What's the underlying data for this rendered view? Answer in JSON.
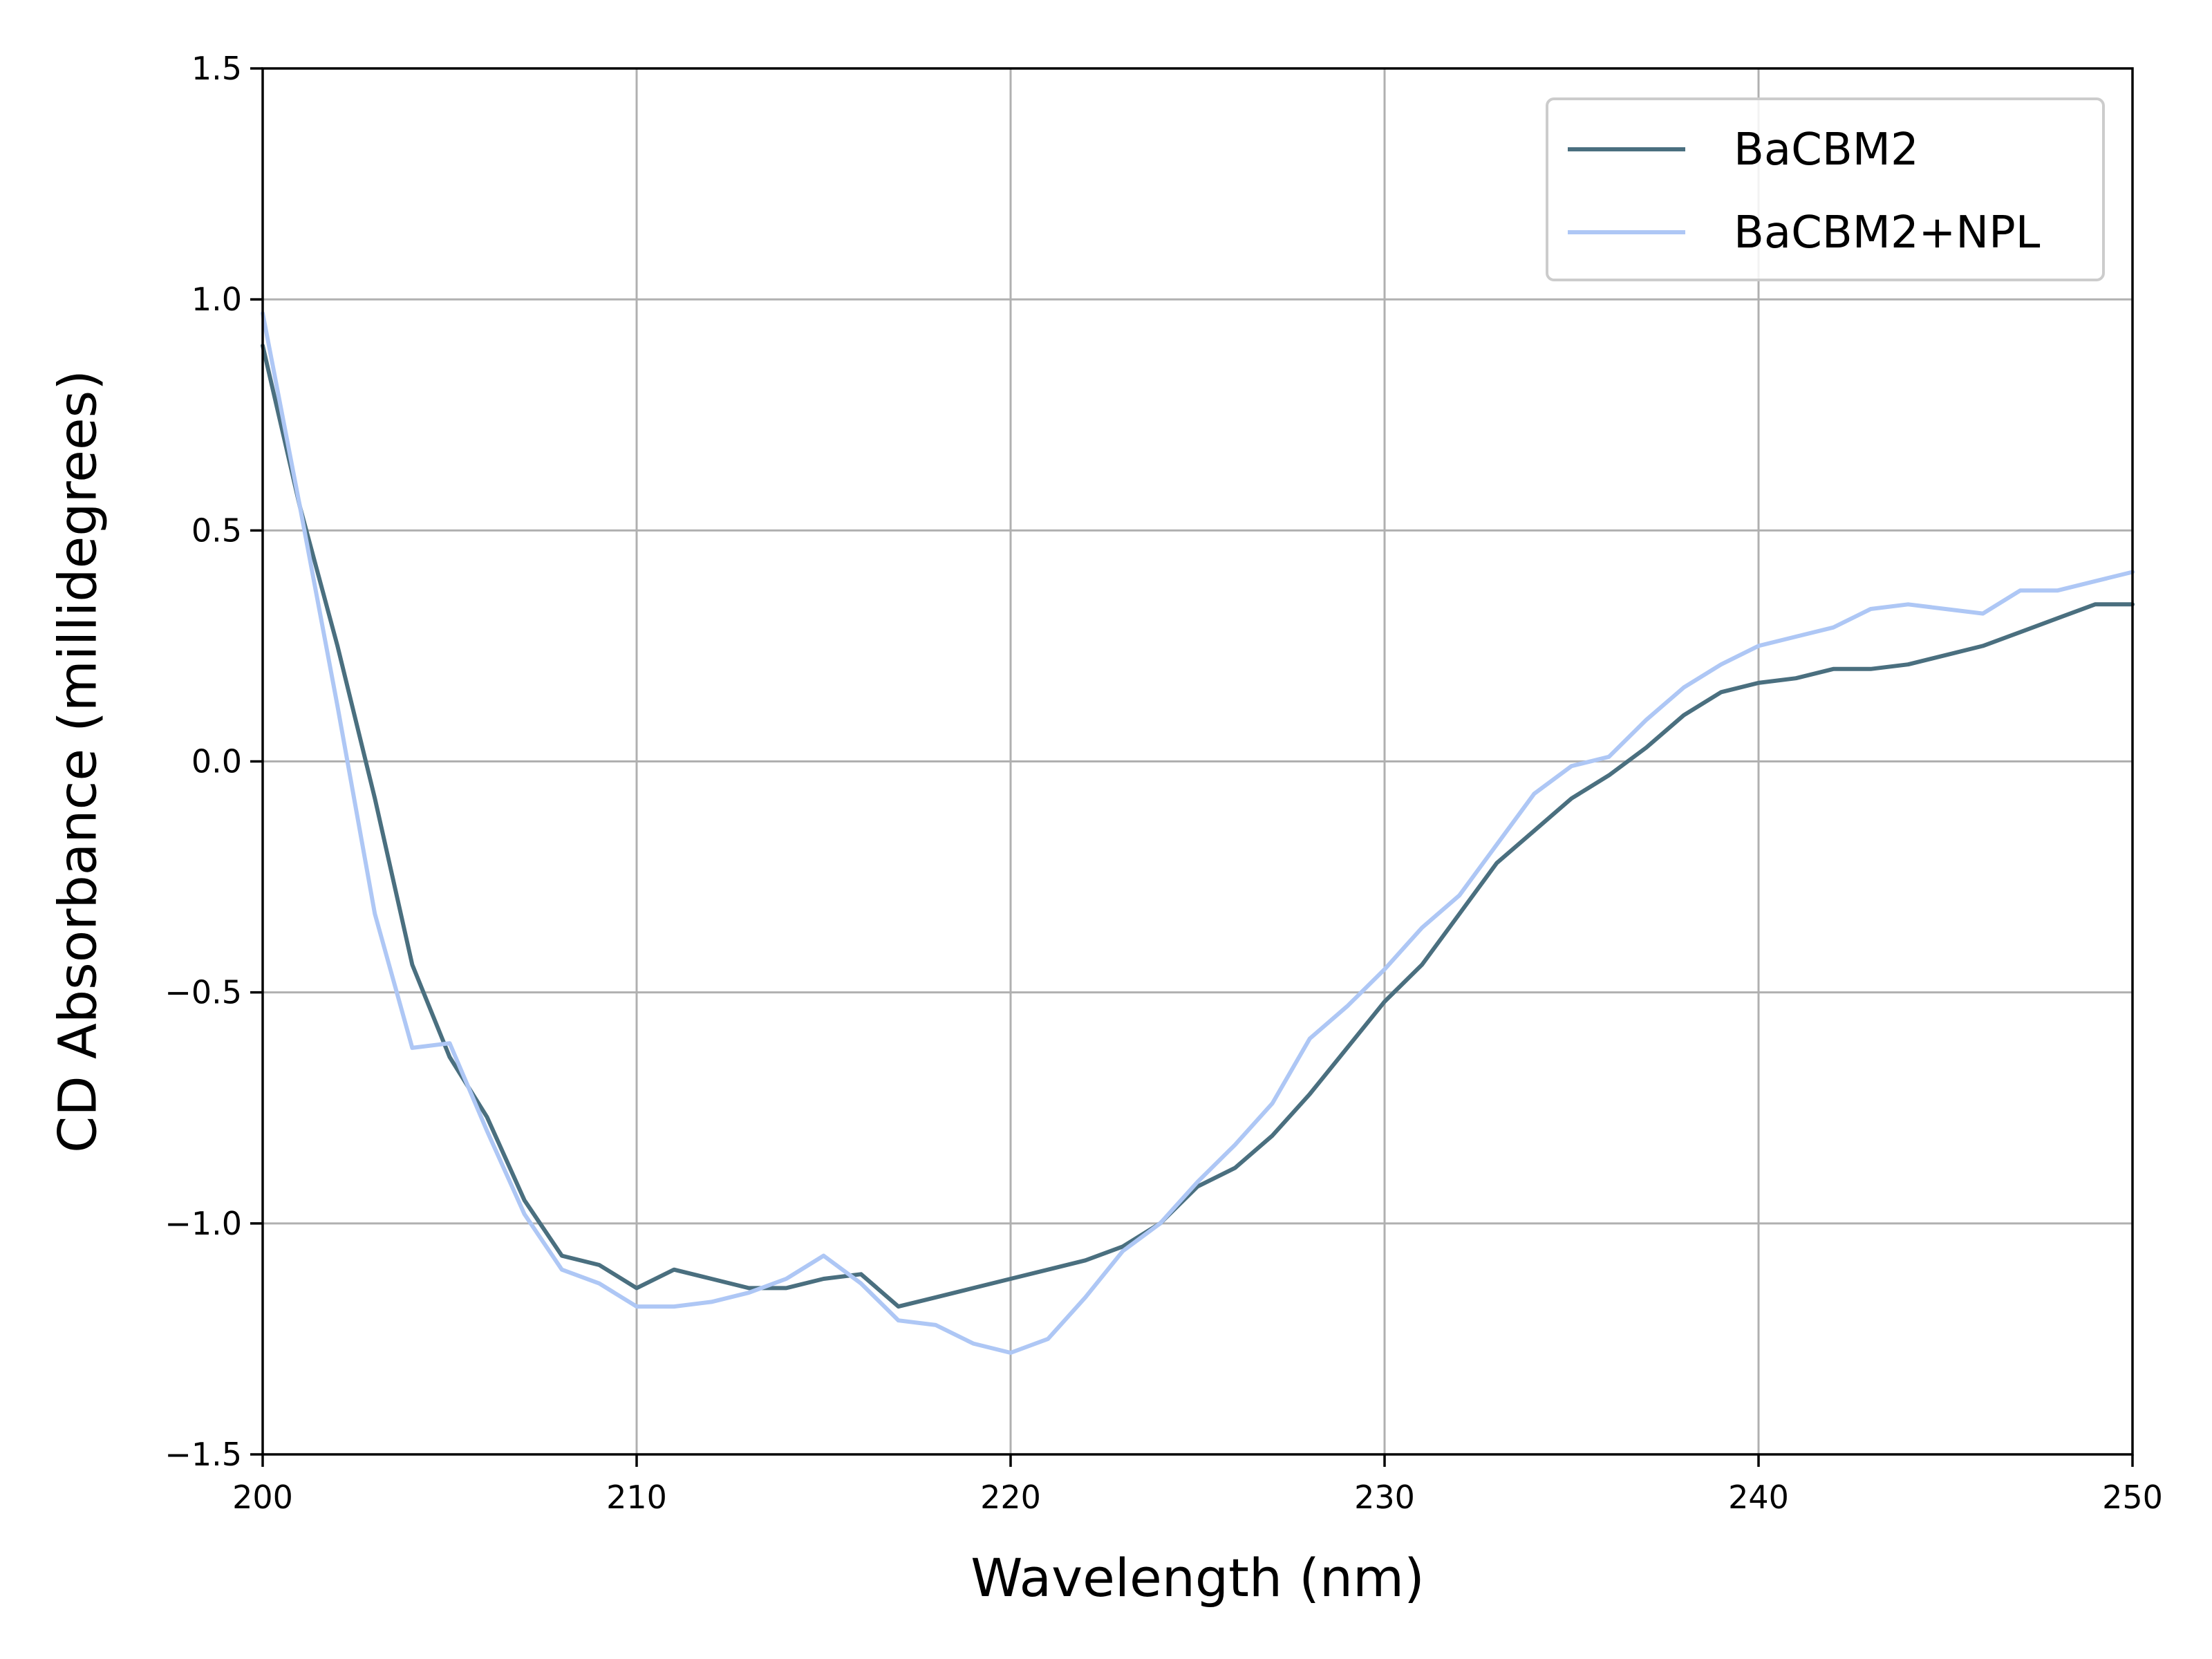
{
  "chart_data": {
    "type": "line",
    "title": "",
    "xlabel": "Wavelength (nm)",
    "ylabel": "CD Absorbance (millidegrees)",
    "xlim": [
      200,
      250
    ],
    "ylim": [
      -1.5,
      1.5
    ],
    "xticks": [
      200,
      210,
      220,
      230,
      240,
      250
    ],
    "xtick_labels": [
      "200",
      "210",
      "220",
      "230",
      "240",
      "250"
    ],
    "yticks": [
      -1.5,
      -1.0,
      -0.5,
      0.0,
      0.5,
      1.0,
      1.5
    ],
    "ytick_labels": [
      "−1.5",
      "−1.0",
      "−0.5",
      "0.0",
      "0.5",
      "1.0",
      "1.5"
    ],
    "grid": true,
    "legend_position": "top-right",
    "x": [
      200,
      201,
      202,
      203,
      204,
      205,
      206,
      207,
      208,
      209,
      210,
      211,
      212,
      213,
      214,
      215,
      216,
      217,
      218,
      219,
      220,
      221,
      222,
      223,
      224,
      225,
      226,
      227,
      228,
      229,
      230,
      231,
      232,
      233,
      234,
      235,
      236,
      237,
      238,
      239,
      240,
      241,
      242,
      243,
      244,
      245,
      246,
      247,
      248,
      249,
      250
    ],
    "series": [
      {
        "name": "BaCBM2",
        "color": "#4a6f7f",
        "values": [
          0.9,
          0.55,
          0.25,
          -0.08,
          -0.44,
          -0.64,
          -0.77,
          -0.95,
          -1.07,
          -1.09,
          -1.14,
          -1.1,
          -1.12,
          -1.14,
          -1.14,
          -1.12,
          -1.11,
          -1.18,
          -1.16,
          -1.14,
          -1.12,
          -1.1,
          -1.08,
          -1.05,
          -1.0,
          -0.92,
          -0.88,
          -0.81,
          -0.72,
          -0.62,
          -0.52,
          -0.44,
          -0.33,
          -0.22,
          -0.15,
          -0.08,
          -0.03,
          0.03,
          0.1,
          0.15,
          0.17,
          0.18,
          0.2,
          0.2,
          0.21,
          0.23,
          0.25,
          0.28,
          0.31,
          0.34,
          0.34
        ]
      },
      {
        "name": "BaCBM2+NPL",
        "color": "#aec7f5",
        "values": [
          0.97,
          0.55,
          0.12,
          -0.33,
          -0.62,
          -0.61,
          -0.8,
          -0.98,
          -1.1,
          -1.13,
          -1.18,
          -1.18,
          -1.17,
          -1.15,
          -1.12,
          -1.07,
          -1.13,
          -1.21,
          -1.22,
          -1.26,
          -1.28,
          -1.25,
          -1.16,
          -1.06,
          -1.0,
          -0.91,
          -0.83,
          -0.74,
          -0.6,
          -0.53,
          -0.45,
          -0.36,
          -0.29,
          -0.18,
          -0.07,
          -0.01,
          0.01,
          0.09,
          0.16,
          0.21,
          0.25,
          0.27,
          0.29,
          0.33,
          0.34,
          0.33,
          0.32,
          0.37,
          0.37,
          0.39,
          0.41
        ]
      }
    ]
  }
}
